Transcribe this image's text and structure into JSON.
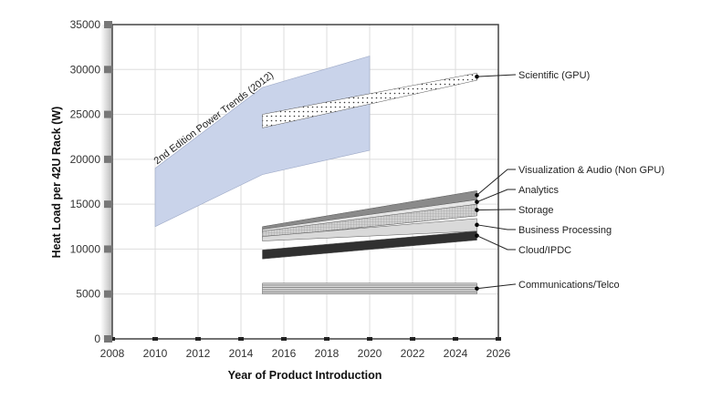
{
  "chart_data": {
    "type": "area",
    "title": "",
    "xlabel": "Year of Product Introduction",
    "ylabel": "Heat Load per 42U Rack (W)",
    "xlim": [
      2008,
      2026
    ],
    "ylim": [
      0,
      35000
    ],
    "xticks": [
      "2008",
      "2010",
      "2012",
      "2014",
      "2016",
      "2018",
      "2020",
      "2022",
      "2024",
      "2026"
    ],
    "yticks": [
      "0",
      "5000",
      "10000",
      "15000",
      "20000",
      "25000",
      "30000",
      "35000"
    ],
    "grid": true,
    "legend": "right, leader-line labels",
    "reference_band": {
      "name": "2nd Edition Power Trends (2012)",
      "color": "#c9d3ea",
      "x": [
        2010,
        2015,
        2020
      ],
      "lower": [
        12500,
        18300,
        21000
      ],
      "upper": [
        19000,
        28000,
        31500
      ]
    },
    "series": [
      {
        "name": "Scientific (GPU)",
        "x": [
          2015,
          2025
        ],
        "lower": [
          23500,
          28800
        ],
        "upper": [
          25000,
          29600
        ],
        "pattern": "dots",
        "color": "#ffffff"
      },
      {
        "name": "Visualization & Audio (Non GPU)",
        "x": [
          2015,
          2025
        ],
        "lower": [
          12000,
          15500
        ],
        "upper": [
          12500,
          16500
        ],
        "pattern": "solid",
        "color": "#8a8a8a"
      },
      {
        "name": "Analytics",
        "x": [
          2015,
          2025
        ],
        "lower": [
          11800,
          15000
        ],
        "upper": [
          12200,
          15500
        ],
        "pattern": "solid",
        "color": "#e6e6e6"
      },
      {
        "name": "Storage",
        "x": [
          2015,
          2025
        ],
        "lower": [
          11300,
          13700
        ],
        "upper": [
          12000,
          15000
        ],
        "pattern": "grid",
        "color": "#c4c4c4"
      },
      {
        "name": "Business Processing",
        "x": [
          2015,
          2025
        ],
        "lower": [
          10900,
          12000
        ],
        "upper": [
          11400,
          13400
        ],
        "pattern": "solid",
        "color": "#d9d9d9"
      },
      {
        "name": "Cloud/IPDC",
        "x": [
          2015,
          2025
        ],
        "lower": [
          8900,
          11000
        ],
        "upper": [
          9900,
          12000
        ],
        "pattern": "solid",
        "color": "#303030"
      },
      {
        "name": "Communications/Telco",
        "x": [
          2015,
          2025
        ],
        "lower": [
          5000,
          5000
        ],
        "upper": [
          6200,
          6200
        ],
        "pattern": "lines",
        "color": "#a8a8a8"
      }
    ]
  }
}
